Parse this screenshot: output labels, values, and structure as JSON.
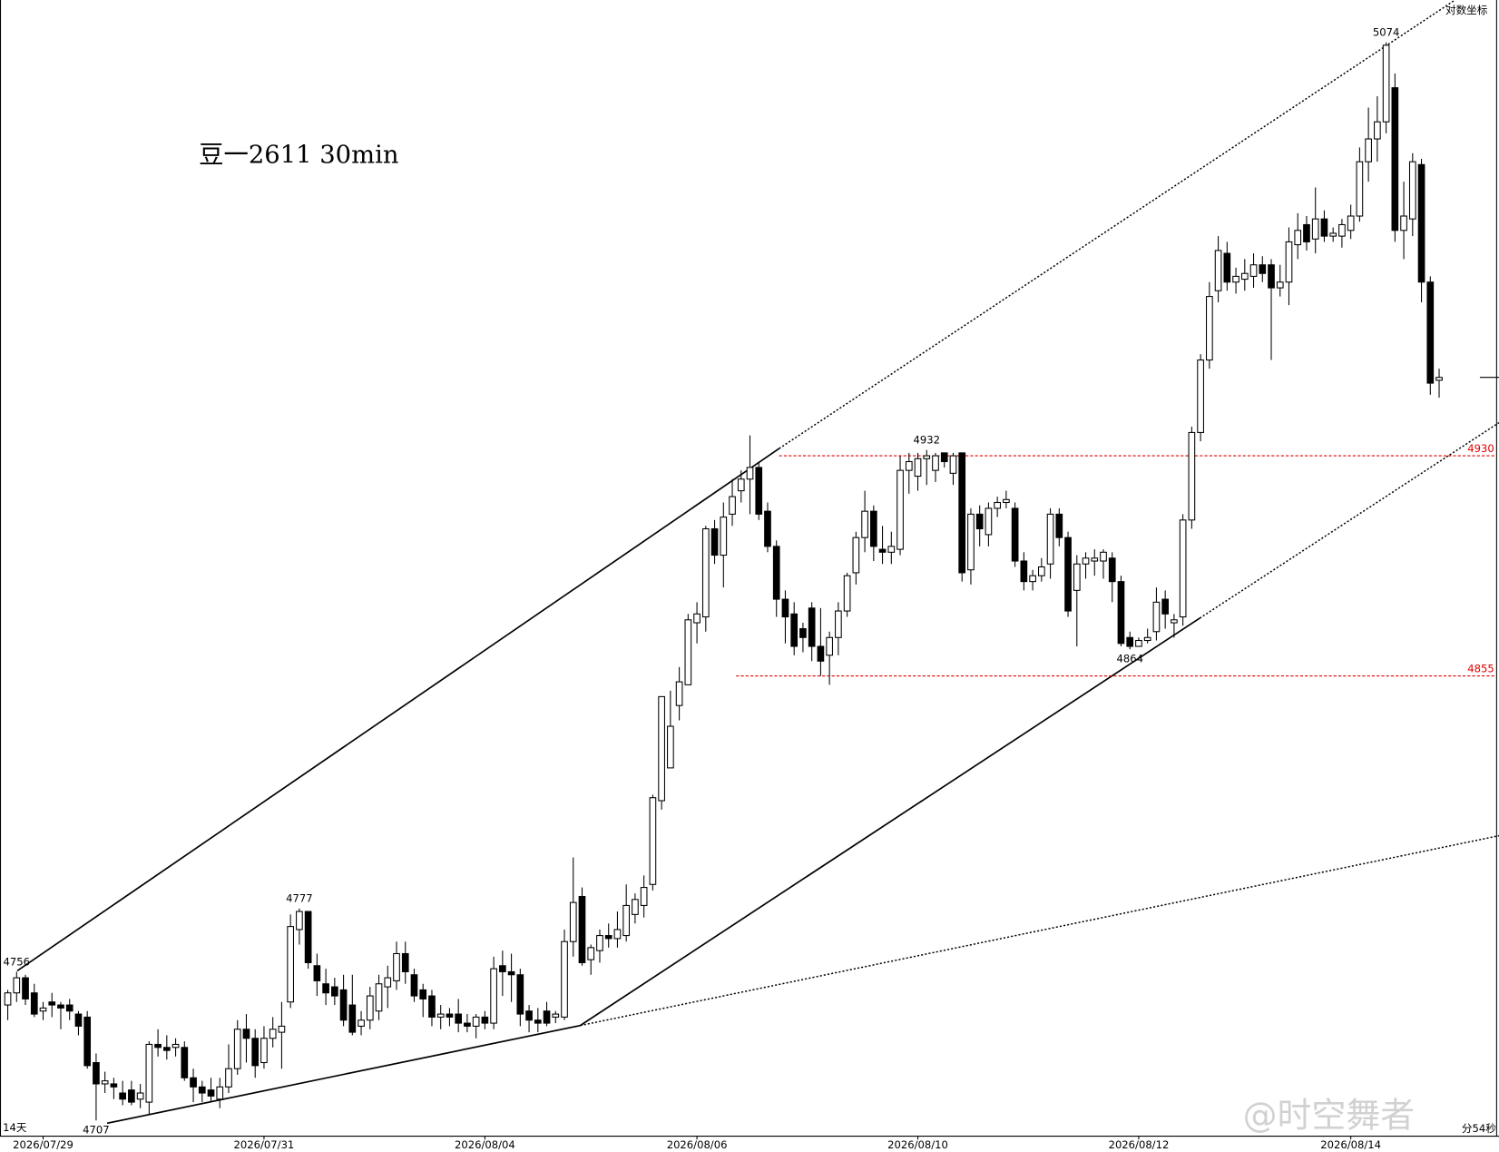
{
  "chart_data": {
    "type": "candlestick",
    "title": "豆一2611 30min",
    "scale_note": "对数坐标",
    "period_label": "14天",
    "timer": "分54秒",
    "watermark": "@时空舞者",
    "yscale": "log",
    "ylim": [
      4702,
      5089
    ],
    "up_color": "#ffffff",
    "down_color": "#000000",
    "level_color": "#e00000",
    "levels": [
      4930,
      4855
    ],
    "point_labels": [
      4756,
      4707,
      4777,
      4932,
      4864,
      5074
    ],
    "categories": [
      null,
      null,
      null,
      null,
      "2026/07/29",
      null,
      null,
      null,
      null,
      null,
      null,
      null,
      null,
      null,
      null,
      null,
      null,
      null,
      null,
      null,
      null,
      null,
      null,
      null,
      null,
      null,
      null,
      null,
      null,
      "2026/07/31",
      null,
      null,
      null,
      null,
      null,
      null,
      null,
      null,
      null,
      null,
      null,
      null,
      null,
      null,
      null,
      null,
      null,
      null,
      null,
      null,
      null,
      null,
      null,
      null,
      "2026/08/04",
      null,
      null,
      null,
      null,
      null,
      null,
      null,
      null,
      null,
      null,
      null,
      null,
      null,
      null,
      null,
      null,
      null,
      null,
      null,
      null,
      null,
      null,
      null,
      "2026/08/06",
      null,
      null,
      null,
      null,
      null,
      null,
      null,
      null,
      null,
      null,
      null,
      null,
      null,
      null,
      null,
      null,
      null,
      null,
      null,
      null,
      null,
      null,
      null,
      null,
      "2026/08/10",
      null,
      null,
      null,
      null,
      null,
      null,
      null,
      null,
      null,
      null,
      null,
      null,
      null,
      null,
      null,
      null,
      null,
      null,
      null,
      null,
      null,
      null,
      null,
      null,
      "2026/08/12",
      null,
      null,
      null,
      null,
      null,
      null,
      null,
      null,
      null,
      null,
      null,
      null,
      null,
      null,
      null,
      null,
      null,
      null,
      null,
      null,
      null,
      null,
      null,
      "2026/08/14",
      null,
      null,
      null,
      null,
      null,
      null,
      null,
      null,
      null,
      null
    ],
    "open": [
      4745,
      4749,
      4754,
      4749,
      4743,
      4746,
      4745,
      4745,
      4742,
      4741,
      4726,
      4719,
      4719,
      4716,
      4717,
      4714,
      4713,
      4732,
      4731,
      4731,
      4731,
      4721,
      4718,
      4717,
      4714,
      4718,
      4724,
      4737,
      4734,
      4726,
      4734,
      4736,
      4746,
      4770,
      4776,
      4758,
      4752,
      4751,
      4750,
      4745,
      4738,
      4740,
      4743,
      4751,
      4753,
      4762,
      4755,
      4750,
      4748,
      4741,
      4742,
      4742,
      4739,
      4738,
      4741,
      4739,
      4758,
      4756,
      4755,
      4743,
      4740,
      4743,
      4741,
      4741,
      4766,
      4781,
      4760,
      4763,
      4768,
      4767,
      4768,
      4775,
      4778,
      4785,
      4813,
      4824,
      4845,
      4852,
      4873,
      4875,
      4905,
      4896,
      4910,
      4918,
      4922,
      4926,
      4911,
      4899,
      4881,
      4876,
      4871,
      4878,
      4865,
      4862,
      4868,
      4877,
      4890,
      4902,
      4911,
      4898,
      4897,
      4898,
      4925,
      4923,
      4929,
      4925,
      4931,
      4924,
      4931,
      4891,
      4910,
      4903,
      4912,
      4914,
      4912,
      4894,
      4887,
      4889,
      4893,
      4910,
      4902,
      4884,
      4893,
      4894,
      4894,
      4895,
      4887,
      4868,
      4865,
      4867,
      4870,
      4881,
      4873,
      4875,
      4908,
      4938,
      4963,
      4987,
      5000,
      4990,
      4991,
      4992,
      4996,
      4996,
      4988,
      4990,
      5003,
      5010,
      5005,
      5012,
      5006,
      5006,
      5008,
      5013,
      5032,
      5040,
      5046,
      5058,
      5008,
      5012,
      5031,
      4990,
      4956
    ],
    "high": [
      4750,
      4756,
      4755,
      4752,
      4746,
      4749,
      4746,
      4747,
      4743,
      4743,
      4729,
      4723,
      4721,
      4720,
      4720,
      4719,
      4733,
      4737,
      4735,
      4734,
      4733,
      4724,
      4720,
      4721,
      4721,
      4732,
      4740,
      4742,
      4737,
      4738,
      4741,
      4746,
      4775,
      4777,
      4776,
      4762,
      4757,
      4754,
      4755,
      4755,
      4743,
      4751,
      4755,
      4758,
      4766,
      4766,
      4757,
      4752,
      4750,
      4745,
      4744,
      4747,
      4742,
      4742,
      4743,
      4761,
      4763,
      4762,
      4757,
      4745,
      4744,
      4746,
      4743,
      4770,
      4794,
      4784,
      4765,
      4770,
      4772,
      4776,
      4785,
      4782,
      4788,
      4815,
      4848,
      4850,
      4858,
      4876,
      4880,
      4906,
      4908,
      4914,
      4922,
      4925,
      4937,
      4928,
      4914,
      4901,
      4884,
      4880,
      4873,
      4880,
      4878,
      4870,
      4880,
      4890,
      4904,
      4918,
      4913,
      4906,
      4904,
      4930,
      4931,
      4931,
      4932,
      4931,
      4931,
      4931,
      4931,
      4912,
      4913,
      4914,
      4916,
      4918,
      4914,
      4897,
      4891,
      4895,
      4912,
      4912,
      4904,
      4896,
      4897,
      4898,
      4898,
      4897,
      4889,
      4870,
      4868,
      4871,
      4885,
      4884,
      4876,
      4910,
      4940,
      4965,
      4990,
      5006,
      5004,
      4995,
      4998,
      5000,
      4999,
      4998,
      4996,
      5009,
      5014,
      5013,
      5023,
      5015,
      5009,
      5012,
      5017,
      5037,
      5051,
      5055,
      5074,
      5063,
      5025,
      5035,
      5033,
      4992,
      4960
    ],
    "low": [
      4740,
      4746,
      4745,
      4741,
      4740,
      4741,
      4737,
      4740,
      4735,
      4724,
      4707,
      4716,
      4714,
      4712,
      4712,
      4711,
      4709,
      4728,
      4727,
      4728,
      4720,
      4713,
      4713,
      4713,
      4711,
      4716,
      4722,
      4726,
      4721,
      4724,
      4731,
      4724,
      4744,
      4765,
      4757,
      4748,
      4745,
      4745,
      4738,
      4735,
      4735,
      4737,
      4740,
      4744,
      4750,
      4752,
      4746,
      4741,
      4738,
      4737,
      4738,
      4736,
      4736,
      4734,
      4737,
      4737,
      4748,
      4746,
      4738,
      4736,
      4736,
      4738,
      4739,
      4740,
      4761,
      4758,
      4755,
      4759,
      4764,
      4764,
      4766,
      4772,
      4774,
      4783,
      4810,
      4824,
      4840,
      4852,
      4866,
      4870,
      4893,
      4885,
      4906,
      4914,
      4910,
      4908,
      4897,
      4875,
      4866,
      4862,
      4863,
      4860,
      4855,
      4852,
      4862,
      4875,
      4886,
      4897,
      4894,
      4893,
      4893,
      4896,
      4917,
      4918,
      4920,
      4921,
      4926,
      4920,
      4887,
      4886,
      4899,
      4899,
      4909,
      4912,
      4892,
      4884,
      4884,
      4887,
      4888,
      4899,
      4875,
      4865,
      4888,
      4889,
      4888,
      4880,
      4865,
      4864,
      4865,
      4866,
      4867,
      4871,
      4868,
      4872,
      4905,
      4935,
      4960,
      4983,
      4987,
      4986,
      4987,
      4988,
      4990,
      4963,
      4985,
      4982,
      4998,
      5001,
      5000,
      5004,
      5004,
      5002,
      5005,
      5011,
      5025,
      5032,
      5042,
      5004,
      4998,
      5006,
      4983,
      4951,
      4950
    ],
    "close": [
      4749,
      4754,
      4747,
      4742,
      4744,
      4745,
      4744,
      4743,
      4738,
      4725,
      4719,
      4720,
      4718,
      4714,
      4713,
      4716,
      4732,
      4731,
      4730,
      4732,
      4721,
      4718,
      4716,
      4715,
      4718,
      4724,
      4737,
      4734,
      4725,
      4734,
      4737,
      4738,
      4771,
      4776,
      4759,
      4753,
      4749,
      4748,
      4740,
      4736,
      4740,
      4748,
      4752,
      4754,
      4762,
      4756,
      4748,
      4747,
      4741,
      4742,
      4741,
      4739,
      4738,
      4741,
      4739,
      4757,
      4756,
      4755,
      4742,
      4740,
      4739,
      4739,
      4742,
      4766,
      4779,
      4759,
      4764,
      4768,
      4767,
      4770,
      4778,
      4780,
      4784,
      4814,
      4848,
      4838,
      4853,
      4874,
      4876,
      4905,
      4896,
      4909,
      4916,
      4922,
      4926,
      4910,
      4899,
      4881,
      4875,
      4865,
      4868,
      4865,
      4860,
      4868,
      4877,
      4889,
      4902,
      4911,
      4899,
      4897,
      4899,
      4925,
      4928,
      4929,
      4930,
      4930,
      4928,
      4930,
      4890,
      4910,
      4905,
      4912,
      4914,
      4915,
      4894,
      4887,
      4889,
      4892,
      4910,
      4902,
      4877,
      4893,
      4895,
      4895,
      4897,
      4887,
      4866,
      4865,
      4867,
      4868,
      4880,
      4876,
      4874,
      4908,
      4938,
      4963,
      4985,
      5001,
      4990,
      4992,
      4993,
      4996,
      4993,
      4988,
      4990,
      5004,
      5008,
      5004,
      5012,
      5006,
      5007,
      5010,
      5013,
      5032,
      5040,
      5046,
      5073,
      5008,
      5013,
      5032,
      4990,
      4955,
      4957
    ]
  }
}
